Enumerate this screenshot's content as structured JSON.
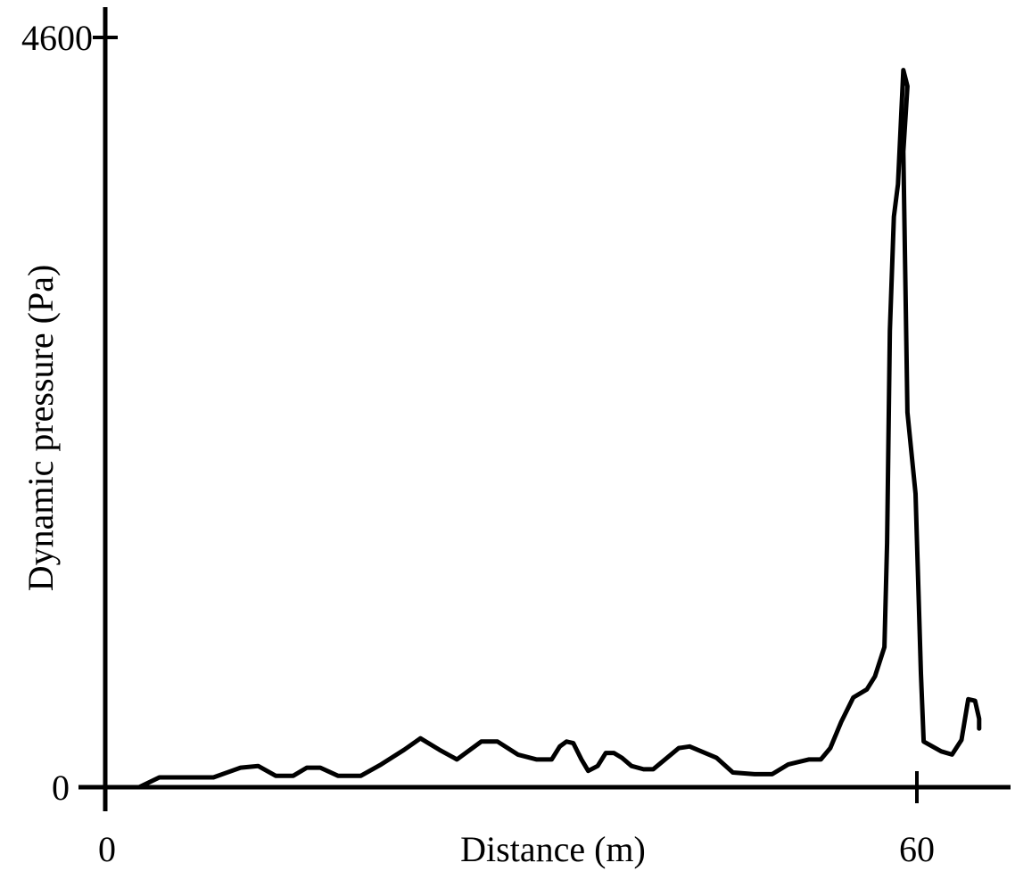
{
  "chart_data": {
    "type": "line",
    "title": "",
    "xlabel": "Distance (m)",
    "ylabel": "Dynamic pressure (Pa)",
    "xlim": [
      0,
      67
    ],
    "ylim": [
      0,
      4600
    ],
    "x_ticks": [
      {
        "value": 0,
        "label": "0"
      },
      {
        "value": 60,
        "label": "60"
      }
    ],
    "y_ticks": [
      {
        "value": 0,
        "label": "0"
      },
      {
        "value": 4600,
        "label": "4600"
      }
    ],
    "grid": false,
    "legend": "none",
    "series": [
      {
        "points": [
          [
            2.5,
            0
          ],
          [
            4.0,
            60
          ],
          [
            5.0,
            60
          ],
          [
            8.0,
            60
          ],
          [
            10.0,
            120
          ],
          [
            11.3,
            130
          ],
          [
            12.6,
            70
          ],
          [
            13.9,
            70
          ],
          [
            14.9,
            120
          ],
          [
            15.9,
            120
          ],
          [
            17.2,
            70
          ],
          [
            18.9,
            70
          ],
          [
            20.4,
            140
          ],
          [
            22.1,
            230
          ],
          [
            23.3,
            300
          ],
          [
            24.7,
            230
          ],
          [
            26.0,
            170
          ],
          [
            27.8,
            280
          ],
          [
            29.0,
            280
          ],
          [
            30.5,
            200
          ],
          [
            31.9,
            170
          ],
          [
            33.0,
            170
          ],
          [
            33.6,
            250
          ],
          [
            34.1,
            280
          ],
          [
            34.6,
            270
          ],
          [
            35.2,
            170
          ],
          [
            35.7,
            100
          ],
          [
            36.4,
            130
          ],
          [
            37.0,
            210
          ],
          [
            37.6,
            210
          ],
          [
            38.2,
            180
          ],
          [
            38.9,
            130
          ],
          [
            39.8,
            110
          ],
          [
            40.5,
            110
          ],
          [
            42.4,
            240
          ],
          [
            43.2,
            250
          ],
          [
            45.2,
            180
          ],
          [
            46.4,
            90
          ],
          [
            48.0,
            80
          ],
          [
            49.3,
            80
          ],
          [
            50.5,
            140
          ],
          [
            52.0,
            170
          ],
          [
            52.9,
            170
          ],
          [
            53.6,
            240
          ],
          [
            54.4,
            400
          ],
          [
            55.3,
            550
          ],
          [
            56.3,
            600
          ],
          [
            56.9,
            680
          ],
          [
            57.6,
            860
          ],
          [
            57.8,
            1500
          ],
          [
            58.0,
            2800
          ],
          [
            58.3,
            3500
          ],
          [
            58.6,
            3700
          ],
          [
            59.0,
            4400
          ],
          [
            59.3,
            4300
          ],
          [
            59.0,
            3900
          ],
          [
            59.3,
            2300
          ],
          [
            59.9,
            1800
          ],
          [
            60.3,
            700
          ],
          [
            60.5,
            280
          ],
          [
            61.8,
            220
          ],
          [
            62.6,
            200
          ],
          [
            63.3,
            290
          ],
          [
            63.8,
            540
          ],
          [
            64.3,
            530
          ],
          [
            64.6,
            420
          ],
          [
            64.6,
            360
          ]
        ]
      }
    ]
  }
}
